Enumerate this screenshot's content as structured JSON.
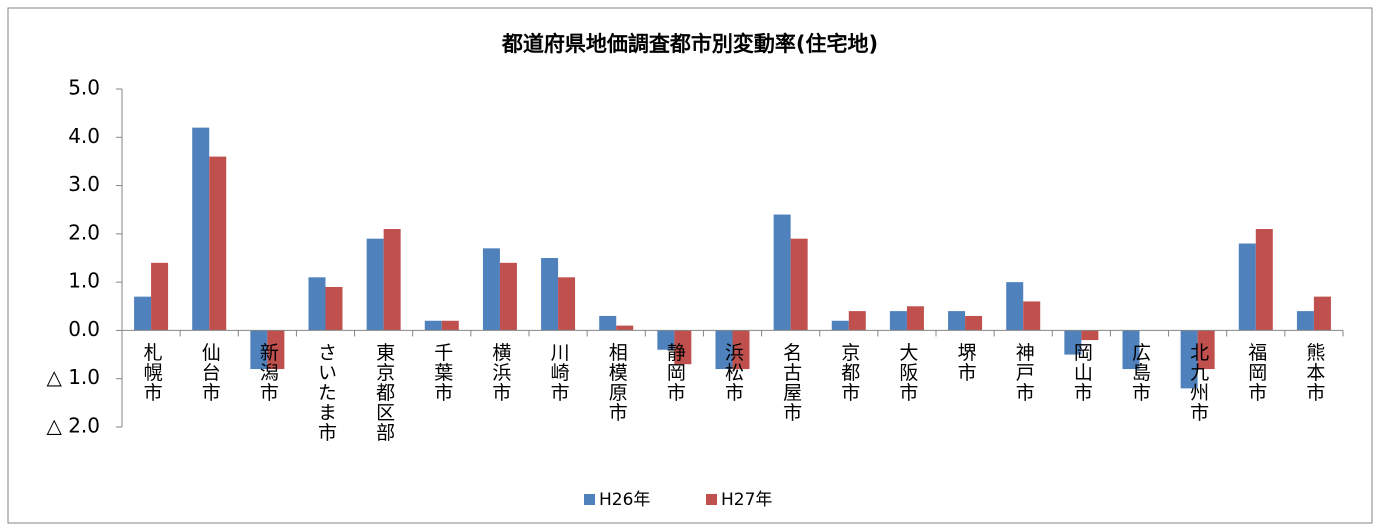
{
  "chart_data": {
    "type": "bar",
    "title": "都道府県地価調査都市別変動率(住宅地)",
    "categories": [
      "札幌市",
      "仙台市",
      "新潟市",
      "さいたま市",
      "東京都区部",
      "千葉市",
      "横浜市",
      "川崎市",
      "相模原市",
      "静岡市",
      "浜松市",
      "名古屋市",
      "京都市",
      "大阪市",
      "堺市",
      "神戸市",
      "岡山市",
      "広島市",
      "北九州市",
      "福岡市",
      "熊本市"
    ],
    "series": [
      {
        "name": "H26年",
        "color": "#4f81bd",
        "values": [
          0.7,
          4.2,
          -0.8,
          1.1,
          1.9,
          0.2,
          1.7,
          1.5,
          0.3,
          -0.4,
          -0.8,
          2.4,
          0.2,
          0.4,
          0.4,
          1.0,
          -0.5,
          -0.8,
          -1.2,
          1.8,
          0.4
        ]
      },
      {
        "name": "H27年",
        "color": "#c0504d",
        "values": [
          1.4,
          3.6,
          -0.8,
          0.9,
          2.1,
          0.2,
          1.4,
          1.1,
          0.1,
          -0.7,
          -0.8,
          1.9,
          0.4,
          0.5,
          0.3,
          0.6,
          -0.2,
          0.0,
          -0.8,
          2.1,
          0.7
        ]
      }
    ],
    "ylim": [
      -2,
      5
    ],
    "yticks": [
      {
        "value": 5,
        "label": "5.0"
      },
      {
        "value": 4,
        "label": "4.0"
      },
      {
        "value": 3,
        "label": "3.0"
      },
      {
        "value": 2,
        "label": "2.0"
      },
      {
        "value": 1,
        "label": "1.0"
      },
      {
        "value": 0,
        "label": "0.0"
      },
      {
        "value": -1,
        "label": "△ 1.0"
      },
      {
        "value": -2,
        "label": "△ 2.0"
      }
    ],
    "grid": false,
    "legend": "bottom"
  }
}
